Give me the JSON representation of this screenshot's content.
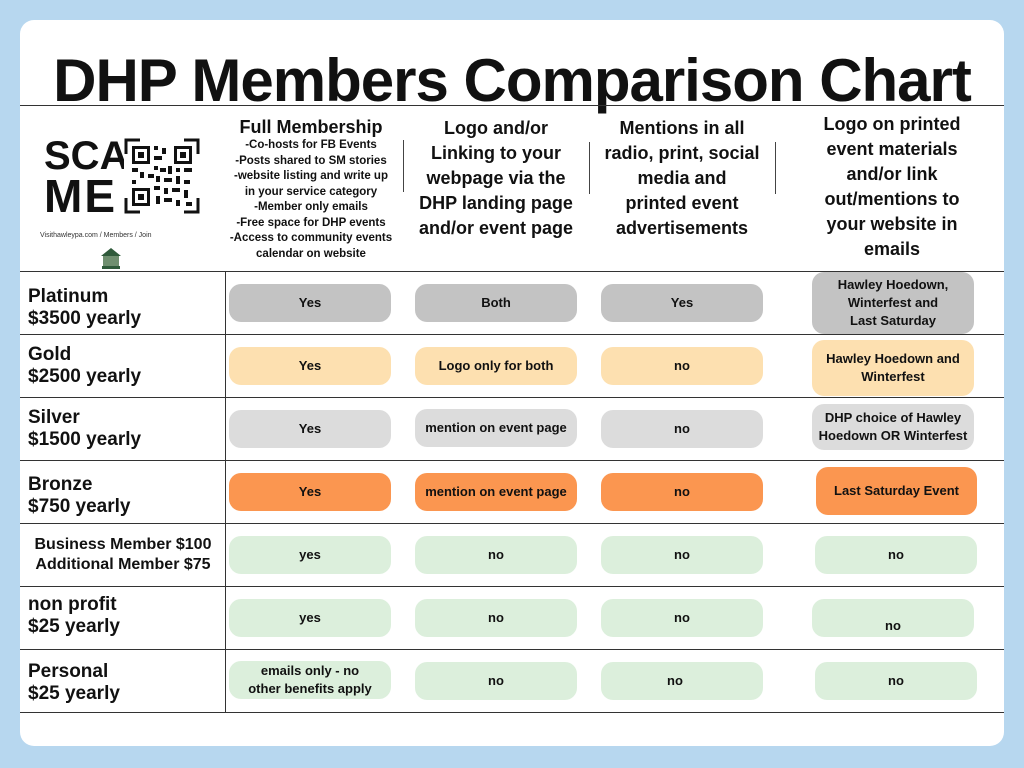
{
  "title": "DHP Members Comparison Chart",
  "qr": {
    "scan_line1": "SCAN",
    "scan_line2": "ME",
    "caption": "Visithawleypa.com / Members / Join"
  },
  "colors": {
    "background": "#b7d7ef",
    "platinum": "#c3c3c3",
    "gold": "#fde0b0",
    "silver": "#dcdcdc",
    "bronze": "#fb9650",
    "green": "#dcefdc"
  },
  "columns": {
    "full_membership": {
      "title": "Full Membership",
      "benefits": [
        "-Co-hosts for FB Events",
        "-Posts shared to SM stories",
        "-website listing and write up",
        "in your service category",
        "-Member only emails",
        "-Free space for DHP events",
        "-Access to community events",
        "calendar on website"
      ]
    },
    "logo_linking": [
      "Logo and/or",
      "Linking to your",
      "webpage via the",
      "DHP landing page",
      "and/or event page"
    ],
    "mentions": [
      "Mentions in all",
      "radio, print, social",
      "media and",
      "printed event",
      "advertisements"
    ],
    "printed": [
      "Logo on printed",
      "event materials",
      "and/or link",
      "out/mentions to",
      "your website in",
      "emails"
    ]
  },
  "rows": [
    {
      "label1": "Platinum",
      "label2": "$3500 yearly",
      "c1": "Yes",
      "c2": "Both",
      "c3": "Yes",
      "c4a": "Hawley Hoedown,",
      "c4b": "Winterfest and",
      "c4c": "Last Saturday"
    },
    {
      "label1": "Gold",
      "label2": "$2500 yearly",
      "c1": "Yes",
      "c2": "Logo only for both",
      "c3": "no",
      "c4a": "Hawley Hoedown and",
      "c4b": "Winterfest"
    },
    {
      "label1": "Silver",
      "label2": "$1500 yearly",
      "c1": "Yes",
      "c2": "mention on event page",
      "c3": "no",
      "c4a": "DHP choice of Hawley",
      "c4b": "Hoedown OR Winterfest"
    },
    {
      "label1": "Bronze",
      "label2": "$750 yearly",
      "c1": "Yes",
      "c2": "mention on event page",
      "c3": "no",
      "c4": "Last Saturday Event"
    },
    {
      "label1": "Business Member $100",
      "label2": "Additional Member $75",
      "c1": "yes",
      "c2": "no",
      "c3": "no",
      "c4": "no"
    },
    {
      "label1": "non profit",
      "label2": "$25 yearly",
      "c1": "yes",
      "c2": "no",
      "c3": "no",
      "c4": "no"
    },
    {
      "label1": "Personal",
      "label2": "$25 yearly",
      "c1a": "emails only - no",
      "c1b": "other benefits apply",
      "c2": "no",
      "c3": "no",
      "c4": "no"
    }
  ]
}
